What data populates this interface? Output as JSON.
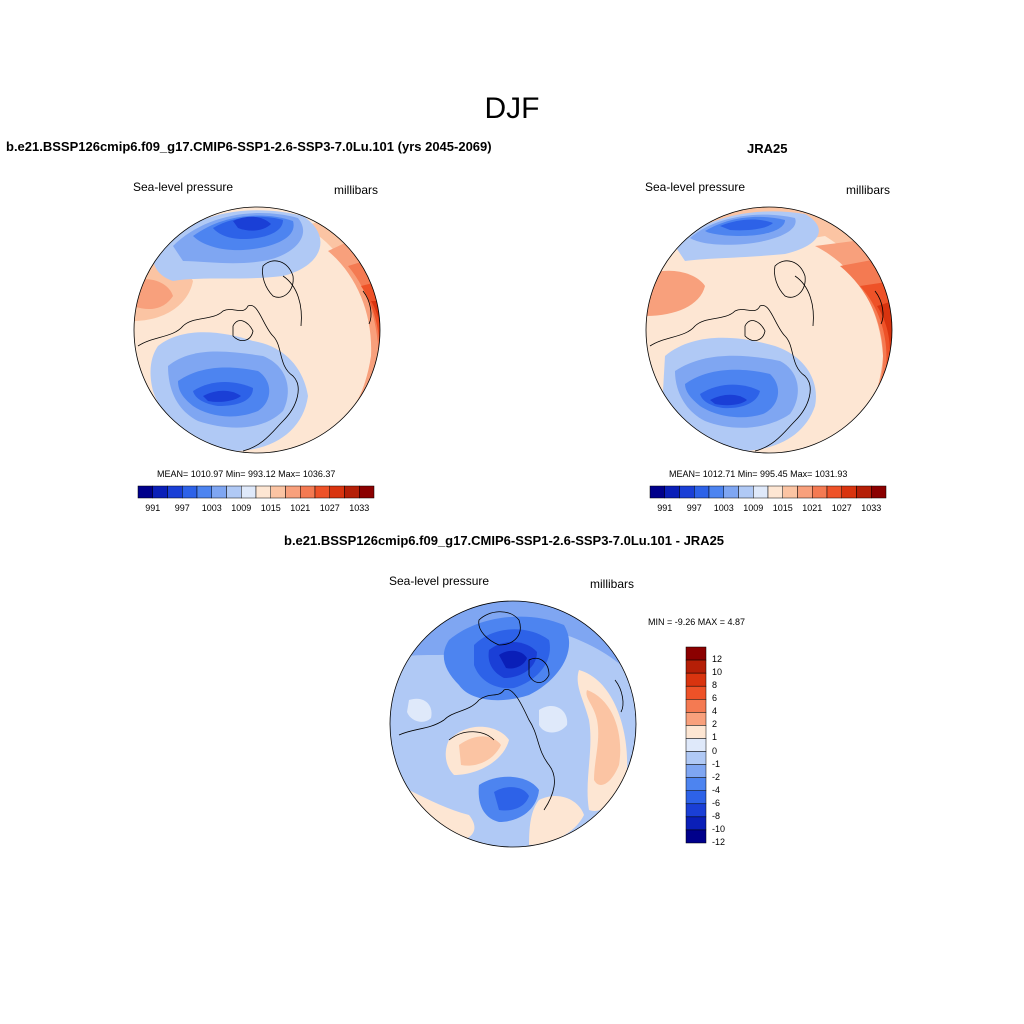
{
  "figure_title": "DJF",
  "panels": [
    {
      "title": "b.e21.BSSP126cmip6.f09_g17.CMIP6-SSP1-2.6-SSP3-7.0Lu.101 (yrs 2045-2069)",
      "left_label": "Sea-level pressure",
      "right_label": "millibars",
      "stats": "MEAN= 1010.97  Min= 993.12  Max= 1036.37",
      "colorbar_ticks": [
        "991",
        "997",
        "1003",
        "1009",
        "1015",
        "1021",
        "1027",
        "1033"
      ]
    },
    {
      "title": "JRA25",
      "left_label": "Sea-level pressure",
      "right_label": "millibars",
      "stats": "MEAN= 1012.71  Min= 995.45  Max= 1031.93",
      "colorbar_ticks": [
        "991",
        "997",
        "1003",
        "1009",
        "1015",
        "1021",
        "1027",
        "1033"
      ]
    },
    {
      "title": "b.e21.BSSP126cmip6.f09_g17.CMIP6-SSP1-2.6-SSP3-7.0Lu.101 - JRA25",
      "left_label": "Sea-level pressure",
      "right_label": "millibars",
      "stats": "MIN =  -9.26 MAX =   4.87",
      "colorbar_ticks": [
        "12",
        "10",
        "8",
        "6",
        "4",
        "2",
        "1",
        "0",
        "-1",
        "-2",
        "-4",
        "-6",
        "-8",
        "-10",
        "-12"
      ]
    }
  ],
  "colors": {
    "abs_scale": [
      "#00008b",
      "#0a1fb8",
      "#1a3fd6",
      "#2d62e8",
      "#4d84f0",
      "#7fa6f2",
      "#b0c9f5",
      "#dfe9fa",
      "#fde6d3",
      "#fbc4a3",
      "#f8a07c",
      "#f47a52",
      "#ee5228",
      "#d9340f",
      "#b51f07",
      "#8b0000"
    ],
    "diff_scale": [
      "#8b0000",
      "#b51f07",
      "#d9340f",
      "#ee5228",
      "#f47a52",
      "#f8a07c",
      "#fde6d3",
      "#dfe9fa",
      "#b0c9f5",
      "#7fa6f2",
      "#4d84f0",
      "#2d62e8",
      "#1a3fd6",
      "#0a1fb8",
      "#00008b"
    ]
  }
}
